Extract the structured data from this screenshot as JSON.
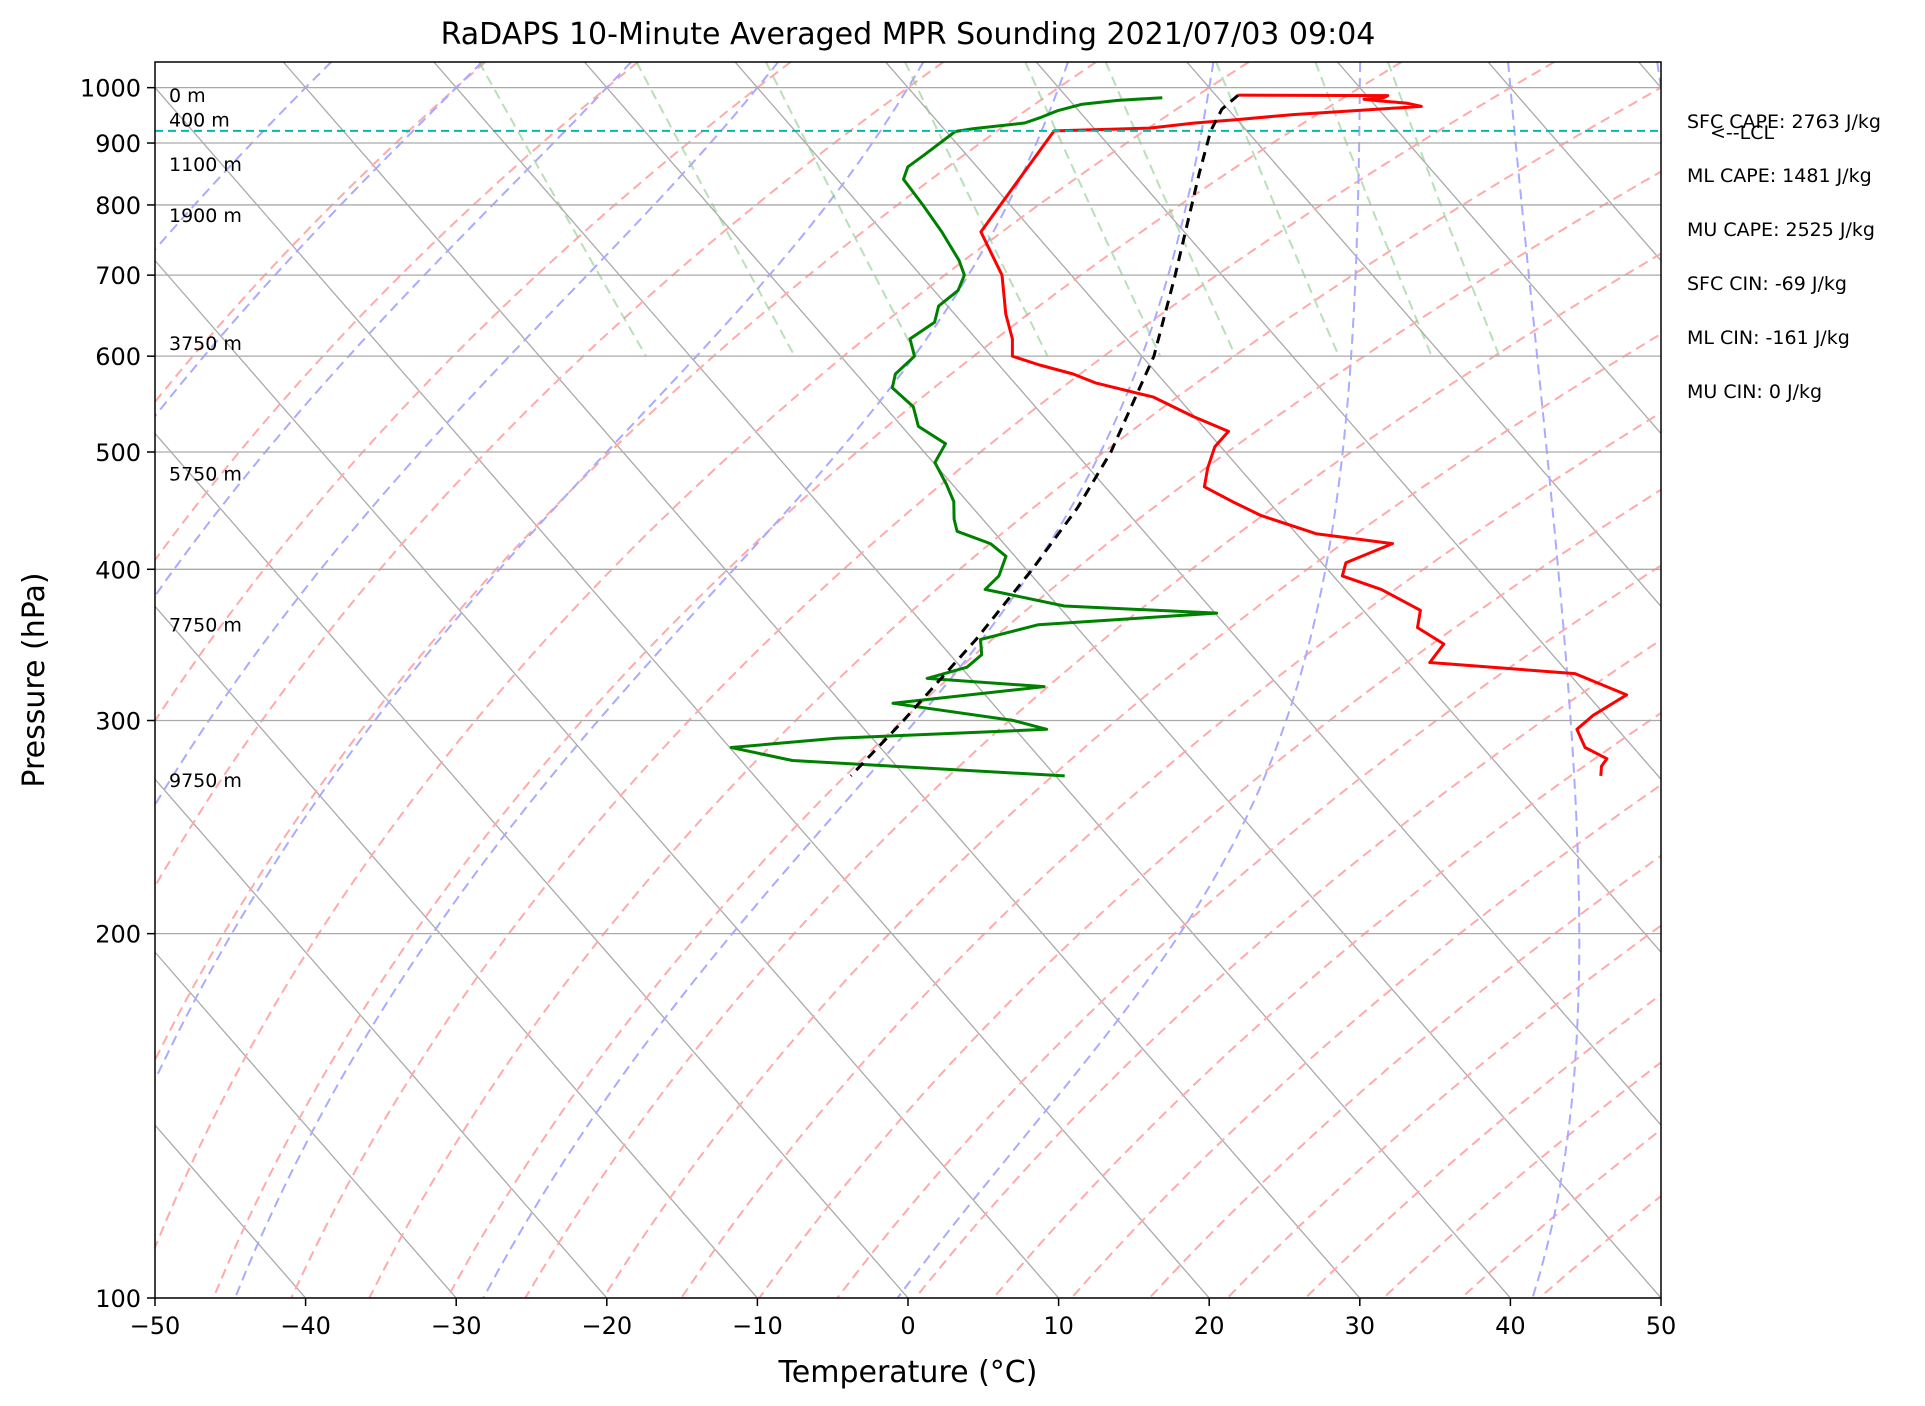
{
  "chart_data": {
    "type": "line",
    "title": "RaDAPS 10-Minute Averaged MPR Sounding 2021/07/03 09:04",
    "xlabel": "Temperature (°C)",
    "ylabel": "Pressure (hPa)",
    "xlim": [
      -50,
      50
    ],
    "ylim": [
      1050,
      100
    ],
    "y_scale": "log",
    "grid": true,
    "x_ticks": [
      -50,
      -40,
      -30,
      -20,
      -10,
      0,
      10,
      20,
      30,
      40,
      50
    ],
    "x_tick_labels": [
      "−50",
      "−40",
      "−30",
      "−20",
      "−10",
      "0",
      "10",
      "20",
      "30",
      "40",
      "50"
    ],
    "y_ticks": [
      100,
      200,
      300,
      400,
      500,
      600,
      700,
      800,
      900,
      1000
    ],
    "y_tick_labels": [
      "100",
      "200",
      "300",
      "400",
      "500",
      "600",
      "700",
      "800",
      "900",
      "1000"
    ],
    "skew_isotherm_degrees_per_decade": 70,
    "background_lines": {
      "isotherms": {
        "color": "#aaaaaa"
      },
      "dry_adiabats": {
        "color": "#ffaaaa",
        "start_c": [
          -30,
          -20,
          -10,
          0,
          10,
          20,
          30,
          40,
          50,
          60,
          70,
          80,
          90,
          100,
          110,
          120,
          130,
          140,
          150,
          160,
          170,
          180,
          190,
          200
        ]
      },
      "moist_adiabats": {
        "color": "#aaaaff",
        "start_c": [
          -40,
          -30,
          -20,
          -10,
          0,
          10,
          20,
          30,
          40,
          50
        ]
      },
      "mixing_ratio_lines": {
        "color": "#88cc88",
        "values_g_per_kg": [
          0.4,
          1,
          2,
          4,
          7,
          10,
          16,
          24,
          32
        ]
      }
    },
    "series": [
      {
        "color": "#ff0000",
        "points": [
          [
            986,
            21.5
          ],
          [
            985,
            31.4
          ],
          [
            981,
            31.0
          ],
          [
            978,
            29.6
          ],
          [
            975,
            30.6
          ],
          [
            971,
            32.2
          ],
          [
            965,
            33.0
          ],
          [
            950,
            24.0
          ],
          [
            941,
            20.0
          ],
          [
            935,
            17.0
          ],
          [
            926,
            13.7
          ],
          [
            921,
            7.2
          ],
          [
            760,
            -3.5
          ],
          [
            700,
            -4.6
          ],
          [
            650,
            -6.6
          ],
          [
            620,
            -7.6
          ],
          [
            600,
            -8.6
          ],
          [
            590,
            -7.3
          ],
          [
            580,
            -5.6
          ],
          [
            570,
            -4.6
          ],
          [
            555,
            -1.6
          ],
          [
            535,
            -0.1
          ],
          [
            520,
            1.4
          ],
          [
            505,
            -0.4
          ],
          [
            485,
            -2.1
          ],
          [
            468,
            -3.4
          ],
          [
            455,
            -2.4
          ],
          [
            443,
            -1.3
          ],
          [
            428,
            1.3
          ],
          [
            420,
            5.8
          ],
          [
            405,
            1.6
          ],
          [
            395,
            0.6
          ],
          [
            385,
            2.4
          ],
          [
            370,
            3.8
          ],
          [
            358,
            2.6
          ],
          [
            347,
            3.4
          ],
          [
            335,
            1.4
          ],
          [
            328,
            10.4
          ],
          [
            315,
            12.6
          ],
          [
            303,
            9.2
          ],
          [
            295,
            7.3
          ],
          [
            285,
            6.8
          ],
          [
            279,
            7.6
          ],
          [
            275,
            6.8
          ],
          [
            270,
            6.2
          ]
        ]
      },
      {
        "color": "#008000",
        "points": [
          [
            981,
            16.3
          ],
          [
            976,
            13.2
          ],
          [
            969,
            10.6
          ],
          [
            957,
            8.6
          ],
          [
            945,
            7.1
          ],
          [
            935,
            5.7
          ],
          [
            925,
            2.0
          ],
          [
            920,
            0.6
          ],
          [
            880,
            -2.8
          ],
          [
            860,
            -4.6
          ],
          [
            840,
            -5.6
          ],
          [
            800,
            -5.8
          ],
          [
            760,
            -6.1
          ],
          [
            720,
            -6.6
          ],
          [
            700,
            -7.1
          ],
          [
            680,
            -8.4
          ],
          [
            660,
            -10.6
          ],
          [
            640,
            -11.8
          ],
          [
            620,
            -14.4
          ],
          [
            600,
            -15.1
          ],
          [
            580,
            -17.4
          ],
          [
            565,
            -18.4
          ],
          [
            545,
            -18.1
          ],
          [
            525,
            -18.9
          ],
          [
            508,
            -18.1
          ],
          [
            490,
            -19.9
          ],
          [
            470,
            -20.4
          ],
          [
            455,
            -20.9
          ],
          [
            440,
            -21.9
          ],
          [
            430,
            -22.4
          ],
          [
            420,
            -20.9
          ],
          [
            410,
            -20.6
          ],
          [
            395,
            -22.2
          ],
          [
            385,
            -23.9
          ],
          [
            373,
            -19.6
          ],
          [
            368,
            -9.9
          ],
          [
            360,
            -22.4
          ],
          [
            350,
            -27.1
          ],
          [
            340,
            -27.9
          ],
          [
            332,
            -29.6
          ],
          [
            325,
            -32.9
          ],
          [
            320,
            -25.6
          ],
          [
            310,
            -36.6
          ],
          [
            300,
            -29.6
          ],
          [
            295,
            -27.9
          ],
          [
            290,
            -42.4
          ],
          [
            285,
            -49.9
          ],
          [
            278,
            -46.6
          ],
          [
            270,
            -29.4
          ]
        ]
      },
      {
        "color": "#000000",
        "dashed": true,
        "points": [
          [
            986,
            21.5
          ],
          [
            960,
            19.6
          ],
          [
            921,
            17.6
          ],
          [
            850,
            14.4
          ],
          [
            700,
            6.9
          ],
          [
            600,
            0.8
          ],
          [
            500,
            -7.6
          ],
          [
            450,
            -13.0
          ],
          [
            400,
            -19.6
          ],
          [
            350,
            -27.4
          ],
          [
            300,
            -36.9
          ],
          [
            270,
            -43.6
          ]
        ]
      }
    ],
    "lcl": {
      "pressure": 921,
      "label": "<--LCL",
      "color": "#00bbaa"
    },
    "height_labels": [
      {
        "label": "0 m",
        "pressure": 986
      },
      {
        "label": "400 m",
        "pressure": 941
      },
      {
        "label": "1100 m",
        "pressure": 865
      },
      {
        "label": "1900 m",
        "pressure": 785
      },
      {
        "label": "3750 m",
        "pressure": 615
      },
      {
        "label": "5750 m",
        "pressure": 480
      },
      {
        "label": "7750 m",
        "pressure": 360
      },
      {
        "label": "9750 m",
        "pressure": 268
      }
    ],
    "annotations": [
      "SFC CAPE: 2763 J/kg",
      "ML CAPE: 1481 J/kg",
      "MU CAPE: 2525 J/kg",
      "SFC CIN: -69 J/kg",
      "ML CIN: -161 J/kg",
      "MU CIN: 0 J/kg"
    ]
  }
}
